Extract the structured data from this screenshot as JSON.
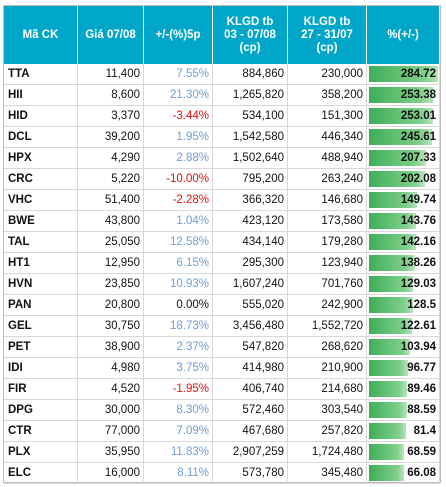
{
  "table": {
    "header": [
      "Mã CK",
      "Giá 07/08",
      "+/-(%)5p",
      "KLGD tb\n03 - 07/08\n(cp)",
      "KLGD tb\n27 - 31/07\n(cp)",
      "%(+/-)"
    ],
    "rows": [
      [
        "TTA",
        "11,400",
        "7.55%",
        "884,860",
        "230,000",
        284.72
      ],
      [
        "HII",
        "8,600",
        "21.30%",
        "1,265,820",
        "358,200",
        253.38
      ],
      [
        "HID",
        "3,370",
        "-3.44%",
        "534,100",
        "151,300",
        253.01
      ],
      [
        "DCL",
        "39,200",
        "1.95%",
        "1,542,580",
        "446,340",
        245.61
      ],
      [
        "HPX",
        "4,290",
        "2.88%",
        "1,502,640",
        "488,940",
        207.33
      ],
      [
        "CRC",
        "5,220",
        "-10.00%",
        "795,200",
        "263,240",
        202.08
      ],
      [
        "VHC",
        "51,400",
        "-2.28%",
        "366,320",
        "146,680",
        149.74
      ],
      [
        "BWE",
        "43,800",
        "1.04%",
        "423,120",
        "173,580",
        143.76
      ],
      [
        "TAL",
        "25,050",
        "12.58%",
        "434,140",
        "179,280",
        142.16
      ],
      [
        "HT1",
        "12,950",
        "6.15%",
        "295,300",
        "123,940",
        138.26
      ],
      [
        "HVN",
        "23,850",
        "10.93%",
        "1,607,240",
        "701,760",
        129.03
      ],
      [
        "PAN",
        "20,800",
        "0.00%",
        "555,020",
        "242,900",
        128.5
      ],
      [
        "GEL",
        "30,750",
        "18.73%",
        "3,456,480",
        "1,552,720",
        122.61
      ],
      [
        "PET",
        "38,900",
        "2.37%",
        "547,820",
        "268,620",
        103.94
      ],
      [
        "IDI",
        "4,980",
        "3.75%",
        "414,980",
        "210,900",
        96.77
      ],
      [
        "FIR",
        "4,520",
        "-1.95%",
        "406,740",
        "214,680",
        89.46
      ],
      [
        "DPG",
        "30,000",
        "8.30%",
        "572,460",
        "303,540",
        88.59
      ],
      [
        "CTR",
        "77,000",
        "7.09%",
        "467,680",
        "257,820",
        81.4
      ],
      [
        "PLX",
        "35,950",
        "11.83%",
        "2,907,259",
        "1,724,480",
        68.59
      ],
      [
        "ELC",
        "16,000",
        "8.11%",
        "573,780",
        "345,480",
        66.08
      ]
    ]
  }
}
